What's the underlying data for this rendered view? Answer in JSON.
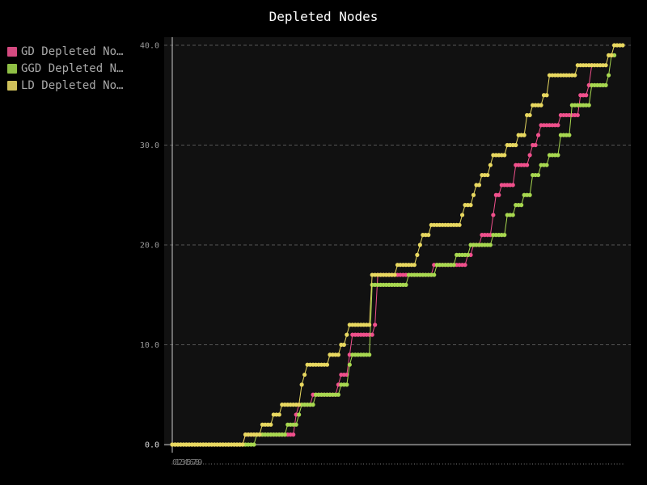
{
  "chart_data": {
    "type": "line",
    "title": "Depleted Nodes",
    "xlabel": "",
    "ylabel": "",
    "ylim": [
      0,
      40
    ],
    "y_ticks": [
      "0.0",
      "10.0",
      "20.0",
      "30.0",
      "40.0"
    ],
    "x_ticks": [
      "0",
      "1",
      "2",
      "3",
      "4",
      "5",
      "6",
      "7",
      "8",
      "9"
    ],
    "grid": "horizontal dashed",
    "legend_position": "top-left",
    "legend_labels": [
      "GD Depleted No…",
      "GGD Depleted N…",
      "LD Depleted No…"
    ],
    "series": [
      {
        "name": "GD Depleted Nodes",
        "color": "#f0508c",
        "values": [
          0,
          0,
          0,
          0,
          0,
          0,
          0,
          0,
          0,
          0,
          0,
          0,
          0,
          0,
          0,
          0,
          0,
          0,
          0,
          0,
          0,
          0,
          0,
          0,
          0,
          0,
          1,
          1,
          1,
          1,
          1,
          1,
          1,
          1,
          1,
          1,
          1,
          1,
          1,
          1,
          1,
          1,
          1,
          1,
          3,
          4,
          4,
          4,
          4,
          4,
          5,
          5,
          5,
          5,
          5,
          5,
          5,
          5,
          5,
          6,
          7,
          7,
          7,
          9,
          11,
          11,
          11,
          11,
          11,
          11,
          11,
          11,
          12,
          17,
          17,
          17,
          17,
          17,
          17,
          17,
          17,
          17,
          17,
          17,
          17,
          17,
          17,
          17,
          17,
          17,
          17,
          17,
          17,
          18,
          18,
          18,
          18,
          18,
          18,
          18,
          18,
          18,
          18,
          18,
          18,
          19,
          19,
          20,
          20,
          20,
          21,
          21,
          21,
          21,
          23,
          25,
          25,
          26,
          26,
          26,
          26,
          26,
          28,
          28,
          28,
          28,
          28,
          29,
          30,
          30,
          31,
          32,
          32,
          32,
          32,
          32,
          32,
          32,
          33,
          33,
          33,
          33,
          33,
          33,
          33,
          35,
          35,
          35,
          36,
          38
        ]
      },
      {
        "name": "GGD Depleted Nodes",
        "color": "#a8d850",
        "values": [
          0,
          0,
          0,
          0,
          0,
          0,
          0,
          0,
          0,
          0,
          0,
          0,
          0,
          0,
          0,
          0,
          0,
          0,
          0,
          0,
          0,
          0,
          0,
          0,
          0,
          0,
          0,
          0,
          0,
          0,
          1,
          1,
          1,
          1,
          1,
          1,
          1,
          1,
          1,
          1,
          1,
          2,
          2,
          2,
          2,
          3,
          4,
          4,
          4,
          4,
          4,
          5,
          5,
          5,
          5,
          5,
          5,
          5,
          5,
          5,
          6,
          6,
          6,
          8,
          9,
          9,
          9,
          9,
          9,
          9,
          9,
          16,
          16,
          16,
          16,
          16,
          16,
          16,
          16,
          16,
          16,
          16,
          16,
          16,
          17,
          17,
          17,
          17,
          17,
          17,
          17,
          17,
          17,
          17,
          18,
          18,
          18,
          18,
          18,
          18,
          18,
          19,
          19,
          19,
          19,
          19,
          20,
          20,
          20,
          20,
          20,
          20,
          20,
          20,
          21,
          21,
          21,
          21,
          21,
          23,
          23,
          23,
          24,
          24,
          24,
          25,
          25,
          25,
          27,
          27,
          27,
          28,
          28,
          28,
          29,
          29,
          29,
          29,
          31,
          31,
          31,
          31,
          34,
          34,
          34,
          34,
          34,
          34,
          34,
          36,
          36,
          36,
          36,
          36,
          36,
          37,
          39,
          39
        ]
      },
      {
        "name": "LD Depleted Nodes",
        "color": "#e8d860",
        "values": [
          0,
          0,
          0,
          0,
          0,
          0,
          0,
          0,
          0,
          0,
          0,
          0,
          0,
          0,
          0,
          0,
          0,
          0,
          0,
          0,
          0,
          0,
          0,
          0,
          0,
          0,
          1,
          1,
          1,
          1,
          1,
          1,
          2,
          2,
          2,
          2,
          3,
          3,
          3,
          4,
          4,
          4,
          4,
          4,
          4,
          4,
          6,
          7,
          8,
          8,
          8,
          8,
          8,
          8,
          8,
          8,
          9,
          9,
          9,
          9,
          10,
          10,
          11,
          12,
          12,
          12,
          12,
          12,
          12,
          12,
          12,
          17,
          17,
          17,
          17,
          17,
          17,
          17,
          17,
          17,
          18,
          18,
          18,
          18,
          18,
          18,
          18,
          19,
          20,
          21,
          21,
          21,
          22,
          22,
          22,
          22,
          22,
          22,
          22,
          22,
          22,
          22,
          22,
          23,
          24,
          24,
          24,
          25,
          26,
          26,
          27,
          27,
          27,
          28,
          29,
          29,
          29,
          29,
          29,
          30,
          30,
          30,
          30,
          31,
          31,
          31,
          33,
          33,
          34,
          34,
          34,
          34,
          35,
          35,
          37,
          37,
          37,
          37,
          37,
          37,
          37,
          37,
          37,
          37,
          38,
          38,
          38,
          38,
          38,
          38,
          38,
          38,
          38,
          38,
          38,
          39,
          39,
          40,
          40,
          40,
          40
        ]
      }
    ]
  }
}
